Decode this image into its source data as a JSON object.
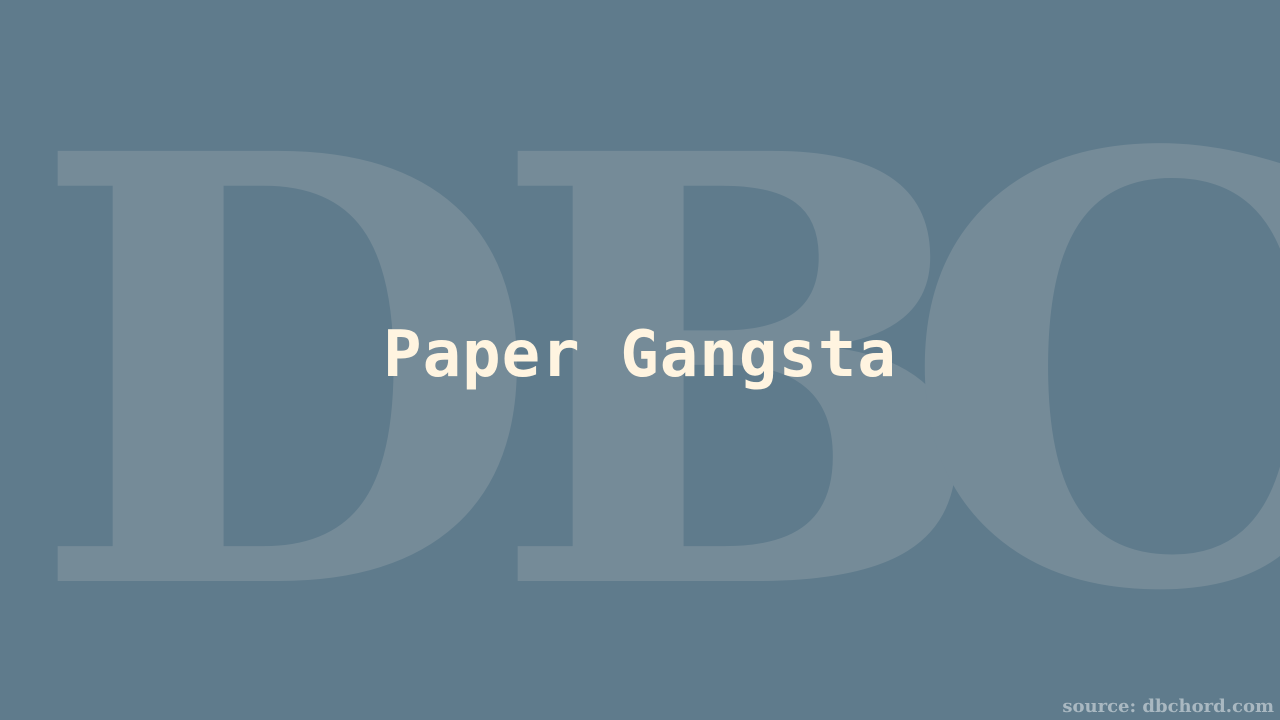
{
  "watermark": {
    "letters": [
      "D",
      "B",
      "C"
    ],
    "color": "#758b98"
  },
  "title": "Paper Gangsta",
  "source": "source: dbchord.com",
  "colors": {
    "background": "#5f7b8c",
    "title": "#fff4e0",
    "source": "#a9b8c1"
  }
}
